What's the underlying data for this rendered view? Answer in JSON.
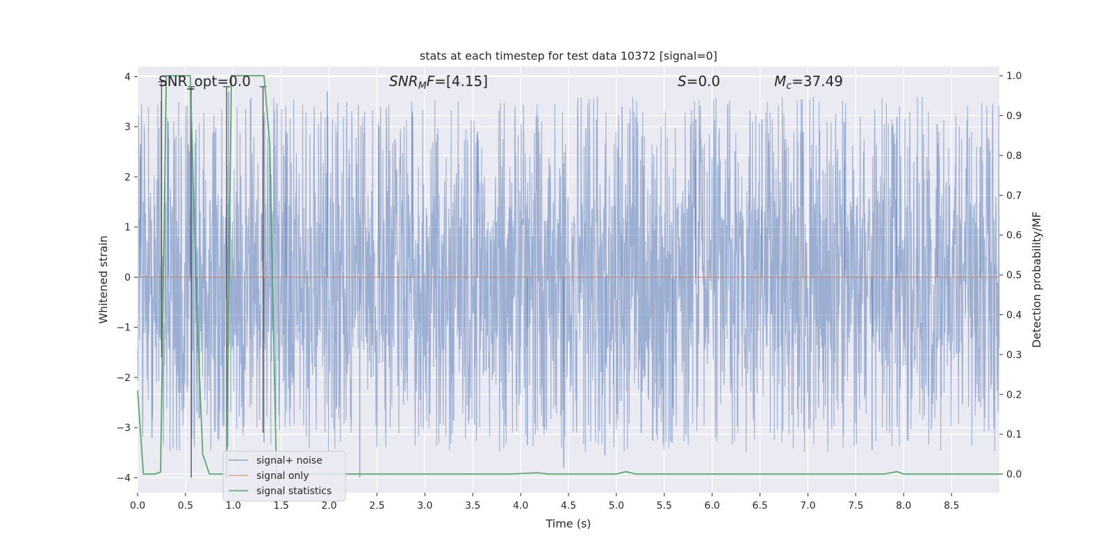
{
  "chart_data": {
    "type": "line",
    "title": "stats at each timestep for test data 10372 [signal=0]",
    "xlabel": "Time (s)",
    "ylabel_left": "Whitened strain",
    "ylabel_right": "Detection probability/MF",
    "xlim": [
      0.0,
      9.0
    ],
    "ylim_left": [
      -4.3,
      4.2
    ],
    "ylim_right": [
      -0.047,
      1.023
    ],
    "x_ticks": [
      "0.0",
      "0.5",
      "1.0",
      "1.5",
      "2.0",
      "2.5",
      "3.0",
      "3.5",
      "4.0",
      "4.5",
      "5.0",
      "5.5",
      "6.0",
      "6.5",
      "7.0",
      "7.5",
      "8.0",
      "8.5"
    ],
    "x_tick_values": [
      0.0,
      0.5,
      1.0,
      1.5,
      2.0,
      2.5,
      3.0,
      3.5,
      4.0,
      4.5,
      5.0,
      5.5,
      6.0,
      6.5,
      7.0,
      7.5,
      8.0,
      8.5
    ],
    "y_left_ticks": [
      "−4",
      "−3",
      "−2",
      "−1",
      "0",
      "1",
      "2",
      "3",
      "4"
    ],
    "y_left_tick_values": [
      -4,
      -3,
      -2,
      -1,
      0,
      1,
      2,
      3,
      4
    ],
    "y_right_ticks": [
      "0.0",
      "0.1",
      "0.2",
      "0.3",
      "0.4",
      "0.5",
      "0.6",
      "0.7",
      "0.8",
      "0.9",
      "1.0"
    ],
    "y_right_tick_values": [
      0.0,
      0.1,
      0.2,
      0.3,
      0.4,
      0.5,
      0.6,
      0.7,
      0.8,
      0.9,
      1.0
    ],
    "annotations": {
      "snr_opt": "SNR_opt=0.0",
      "snr_mf_base": "SNR",
      "snr_mf_sub": "M",
      "snr_mf_rest": "F=[4.15]",
      "s_label": "S",
      "s_value": "=0.0",
      "mc_base": "M",
      "mc_sub": "c",
      "mc_value": "=37.49"
    },
    "legend": {
      "placement": "bottom-left",
      "entries": [
        "signal+ noise",
        "signal only",
        "signal statistics"
      ]
    },
    "series": [
      {
        "name": "signal+ noise",
        "axis": "left",
        "kind": "noise_band",
        "x_range": [
          0.0,
          9.0
        ],
        "dense_band": [
          -1.5,
          1.5
        ],
        "spikes": [
          {
            "x": 0.03,
            "y": 2.65
          },
          {
            "x": 0.15,
            "y": -3.2
          },
          {
            "x": 0.32,
            "y": 3.1
          },
          {
            "x": 0.55,
            "y": 3.8
          },
          {
            "x": 0.62,
            "y": -2.7
          },
          {
            "x": 0.95,
            "y": 3.7
          },
          {
            "x": 1.32,
            "y": -3.3
          },
          {
            "x": 1.55,
            "y": 2.9
          },
          {
            "x": 1.98,
            "y": 3.7
          },
          {
            "x": 2.32,
            "y": -4.0
          },
          {
            "x": 2.52,
            "y": 3.0
          },
          {
            "x": 2.87,
            "y": 3.3
          },
          {
            "x": 3.55,
            "y": 2.9
          },
          {
            "x": 4.07,
            "y": -3.35
          },
          {
            "x": 4.45,
            "y": -3.8
          },
          {
            "x": 4.88,
            "y": -3.55
          },
          {
            "x": 5.06,
            "y": 3.4
          },
          {
            "x": 5.58,
            "y": -3.3
          },
          {
            "x": 5.83,
            "y": 3.15
          },
          {
            "x": 6.52,
            "y": 3.15
          },
          {
            "x": 6.95,
            "y": 2.9
          },
          {
            "x": 7.38,
            "y": 3.1
          },
          {
            "x": 7.67,
            "y": -3.45
          },
          {
            "x": 7.93,
            "y": 3.2
          },
          {
            "x": 8.35,
            "y": 3.05
          },
          {
            "x": 8.8,
            "y": 2.6
          }
        ]
      },
      {
        "name": "signal only",
        "axis": "left",
        "x": [
          0.0,
          9.0
        ],
        "y": [
          0.0,
          0.0
        ]
      },
      {
        "name": "signal statistics",
        "axis": "right",
        "x": [
          0.0,
          0.06,
          0.18,
          0.24,
          0.3,
          0.55,
          0.58,
          0.62,
          0.68,
          0.75,
          0.93,
          0.98,
          1.25,
          1.32,
          1.38,
          1.45,
          1.55,
          2.0,
          3.0,
          3.9,
          4.17,
          4.3,
          5.0,
          5.1,
          5.2,
          5.4,
          7.8,
          7.93,
          8.0,
          9.0
        ],
        "y": [
          0.21,
          0.0,
          0.0,
          0.005,
          1.0,
          1.0,
          0.74,
          0.4,
          0.05,
          0.0,
          0.0,
          1.0,
          1.0,
          1.0,
          0.83,
          0.0,
          0.0,
          0.0,
          0.0,
          0.0,
          0.003,
          0.0,
          0.0,
          0.006,
          0.0,
          0.0,
          0.0,
          0.006,
          0.0,
          0.0
        ]
      }
    ],
    "vertical_markers": [
      {
        "x": 0.25,
        "y_top": 3.9,
        "y_bottom": -1.6
      },
      {
        "x": 0.56,
        "y_top": 3.8,
        "y_bottom": -4.0
      },
      {
        "x": 0.93,
        "y_top": 3.8,
        "y_bottom": -4.0
      },
      {
        "x": 1.31,
        "y_top": 3.8,
        "y_bottom": -3.1
      }
    ],
    "colors": {
      "plot_bg": "#eaeaf2",
      "grid": "#ffffff",
      "noise": "#4c72b0",
      "signal": "#dd8452",
      "stats": "#55a868",
      "marker": "#555555",
      "legend_bg": "#eaeaf2",
      "legend_border": "#cccccc"
    }
  }
}
